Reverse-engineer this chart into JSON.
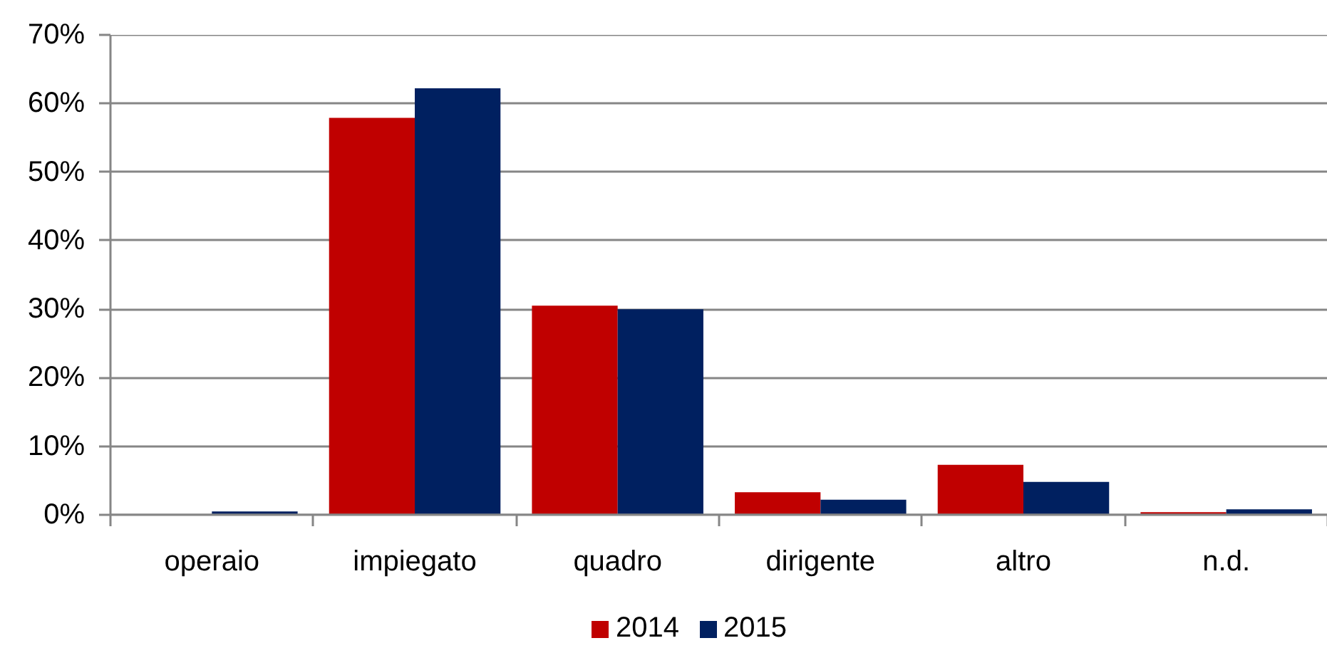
{
  "chart_data": {
    "type": "bar",
    "categories": [
      "operaio",
      "impiegato",
      "quadro",
      "dirigente",
      "altro",
      "n.d."
    ],
    "series": [
      {
        "name": "2014",
        "color": "#c00000",
        "values": [
          0,
          57.9,
          30.5,
          3.3,
          7.3,
          0.4
        ]
      },
      {
        "name": "2015",
        "color": "#002060",
        "values": [
          0.5,
          62.2,
          30.0,
          2.2,
          4.8,
          0.8
        ]
      }
    ],
    "ylim": [
      0,
      70
    ],
    "yticks": [
      {
        "value": 0,
        "label": "0%"
      },
      {
        "value": 10,
        "label": "10%"
      },
      {
        "value": 20,
        "label": "20%"
      },
      {
        "value": 30,
        "label": "30%"
      },
      {
        "value": 40,
        "label": "40%"
      },
      {
        "value": 50,
        "label": "50%"
      },
      {
        "value": 60,
        "label": "60%"
      },
      {
        "value": 70,
        "label": "70%"
      }
    ],
    "grid": "y",
    "legend": "bottom"
  }
}
